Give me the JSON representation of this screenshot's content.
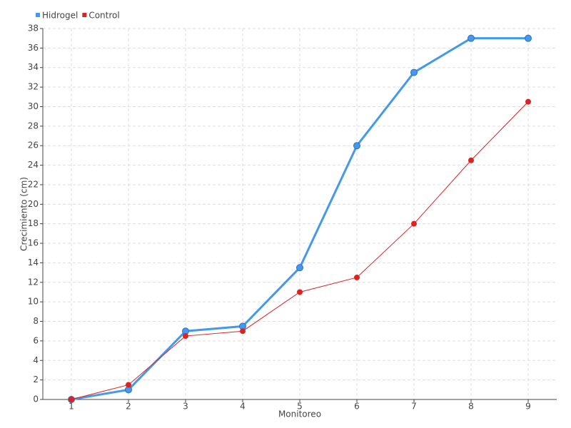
{
  "chart_data": {
    "type": "line",
    "x_label": "Monitoreo",
    "y_label": "Crecimiento (cm)",
    "x": [
      1,
      2,
      3,
      4,
      5,
      6,
      7,
      8,
      9
    ],
    "xlim": [
      0.5,
      9.5
    ],
    "xticks": [
      1,
      2,
      3,
      4,
      5,
      6,
      7,
      8,
      9
    ],
    "ylim": [
      0,
      38
    ],
    "yticks": [
      0,
      2,
      4,
      6,
      8,
      10,
      12,
      14,
      16,
      18,
      20,
      22,
      24,
      26,
      28,
      30,
      32,
      34,
      36,
      38
    ],
    "grid": true,
    "legend": "top-left",
    "series": [
      {
        "name": "Hidrogel",
        "color": "#4499ee",
        "values": [
          0,
          1,
          7,
          7.5,
          13.5,
          26,
          33.5,
          37,
          37
        ]
      },
      {
        "name": "Control",
        "color": "#dd2222",
        "values": [
          0,
          1.5,
          6.5,
          7,
          11,
          12.5,
          18,
          24.5,
          30.5
        ]
      }
    ]
  }
}
